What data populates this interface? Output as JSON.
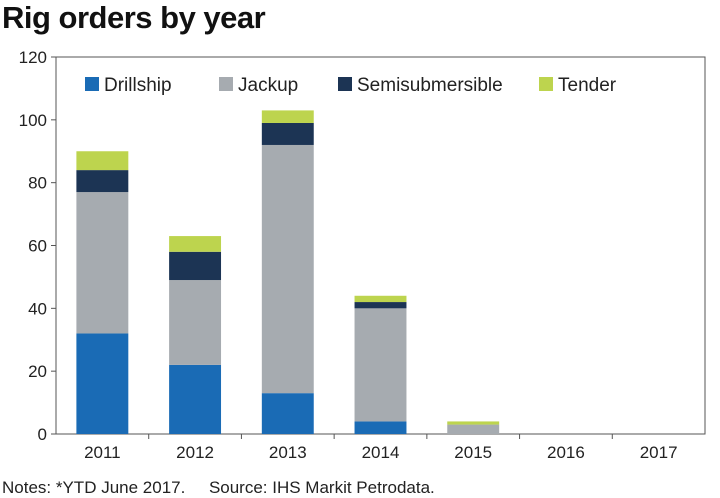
{
  "title": "Rig orders by year",
  "notes": "Notes: *YTD June 2017.     Source: IHS Markit Petrodata.",
  "chart_data": {
    "type": "bar",
    "stacked": true,
    "categories": [
      "2011",
      "2012",
      "2013",
      "2014",
      "2015",
      "2016",
      "2017"
    ],
    "series": [
      {
        "name": "Drillship",
        "color": "#1a6bb5",
        "values": [
          32,
          22,
          13,
          4,
          0,
          0,
          0
        ]
      },
      {
        "name": "Jackup",
        "color": "#a6abb0",
        "values": [
          45,
          27,
          79,
          36,
          3,
          0,
          0
        ]
      },
      {
        "name": "Semisubmersible",
        "color": "#1c3454",
        "values": [
          7,
          9,
          7,
          2,
          0,
          0,
          0
        ]
      },
      {
        "name": "Tender",
        "color": "#bdd44e",
        "values": [
          6,
          5,
          4,
          2,
          1,
          0,
          0
        ]
      }
    ],
    "ylim": [
      0,
      120
    ],
    "yticks": [
      0,
      20,
      40,
      60,
      80,
      100,
      120
    ],
    "grid": false,
    "legend": "top-inside"
  }
}
